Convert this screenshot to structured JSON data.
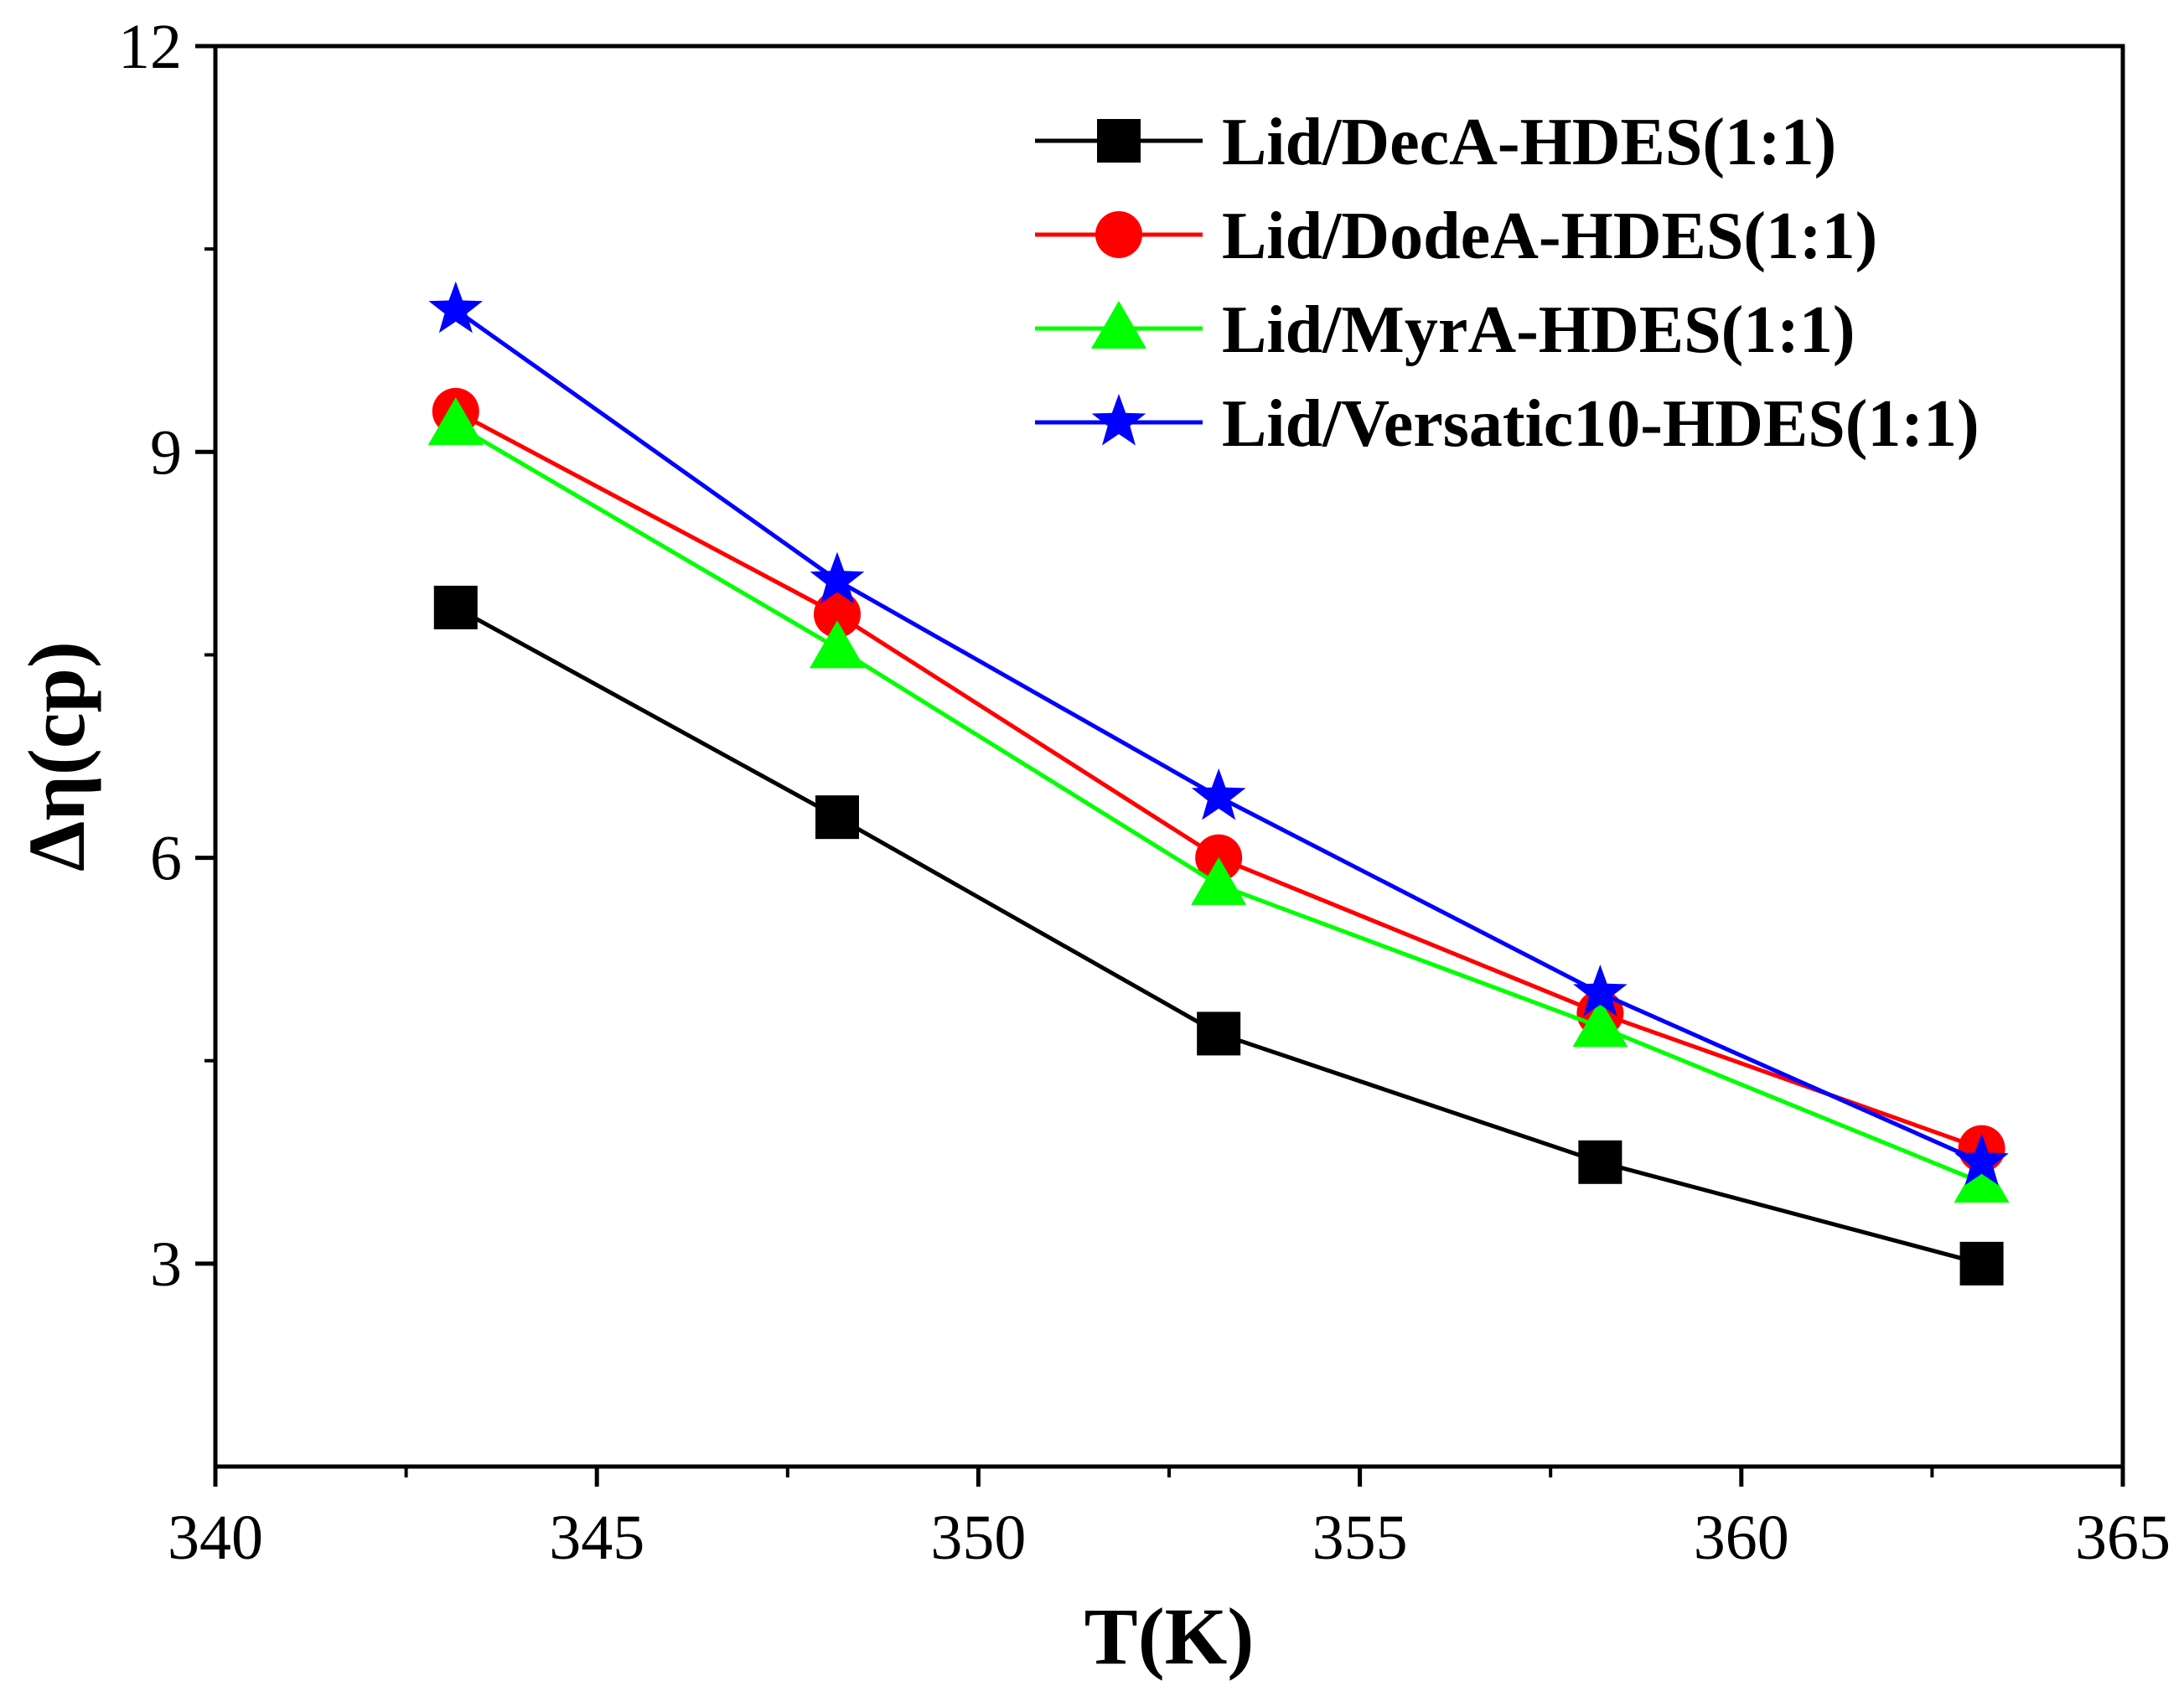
{
  "chart_data": {
    "type": "line",
    "title": "",
    "xlabel": "T(K)",
    "ylabel": "Δη(cp)",
    "xlim": [
      340,
      365
    ],
    "ylim": [
      1.5,
      12
    ],
    "x_ticks": [
      340,
      345,
      350,
      355,
      360,
      365
    ],
    "y_ticks": [
      3,
      6,
      9,
      12
    ],
    "x_tick_labels": [
      "340",
      "345",
      "350",
      "355",
      "360",
      "365"
    ],
    "y_tick_labels": [
      "3",
      "6",
      "9",
      "12"
    ],
    "grid": false,
    "legend_position": "top-right",
    "x": [
      343.15,
      348.15,
      353.15,
      358.15,
      363.15
    ],
    "series": [
      {
        "name": "Lid/DecA-HDES(1:1)",
        "color": "#000000",
        "marker": "square",
        "values": [
          7.85,
          6.3,
          4.7,
          3.75,
          3.0
        ]
      },
      {
        "name": "Lid/DodeA-HDES(1:1)",
        "color": "#ff0000",
        "marker": "circle",
        "values": [
          9.3,
          7.8,
          6.0,
          4.85,
          3.85
        ]
      },
      {
        "name": "Lid/MyrA-HDES(1:1)",
        "color": "#00ff00",
        "marker": "triangle",
        "values": [
          9.2,
          7.55,
          5.8,
          4.75,
          3.6
        ]
      },
      {
        "name": "Lid/Versatic10-HDES(1:1)",
        "color": "#0000ff",
        "marker": "star",
        "values": [
          10.05,
          8.05,
          6.45,
          5.0,
          3.75
        ]
      }
    ]
  }
}
